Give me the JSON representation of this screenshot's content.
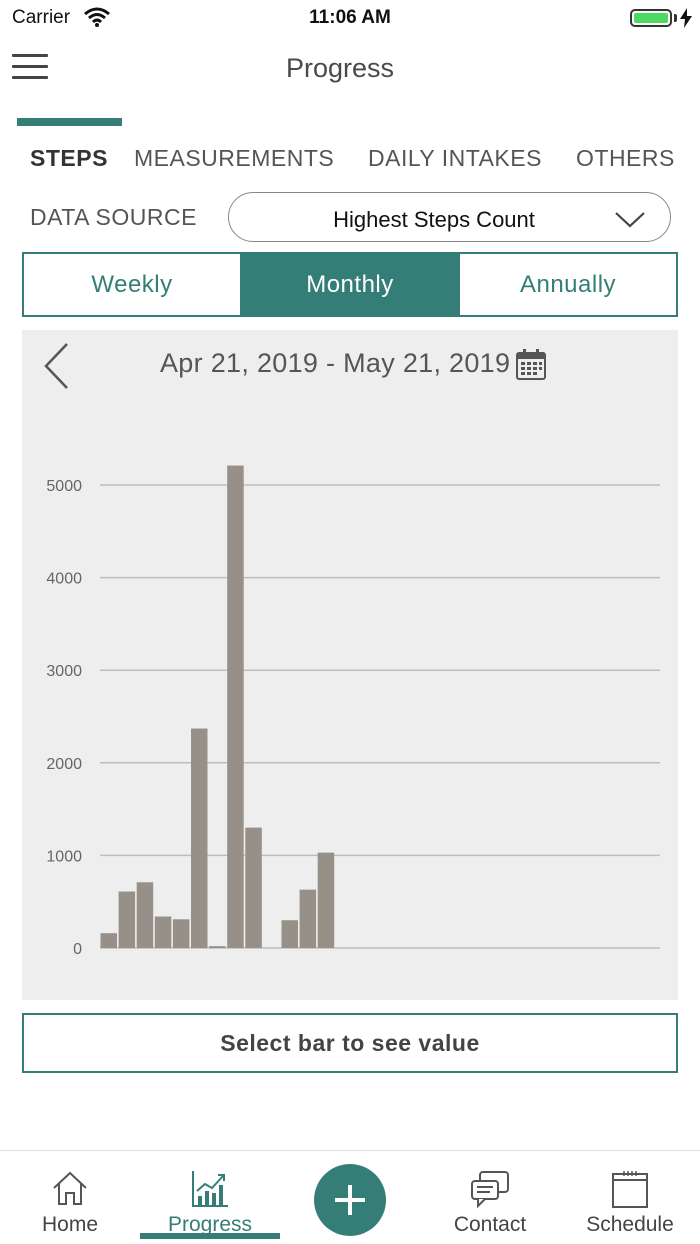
{
  "status_bar": {
    "carrier": "Carrier",
    "time": "11:06 AM"
  },
  "header": {
    "title": "Progress"
  },
  "tabs": [
    {
      "label": "STEPS",
      "active": true
    },
    {
      "label": "MEASUREMENTS",
      "active": false
    },
    {
      "label": "DAILY INTAKES",
      "active": false
    },
    {
      "label": "OTHERS",
      "active": false
    }
  ],
  "data_source": {
    "label": "DATA SOURCE",
    "selected": "Highest Steps Count"
  },
  "period": {
    "options": [
      "Weekly",
      "Monthly",
      "Annually"
    ],
    "selected": "Monthly"
  },
  "chart_header": {
    "date_range": "Apr 21, 2019 - May 21, 2019"
  },
  "chart_data": {
    "type": "bar",
    "values": [
      160,
      610,
      710,
      340,
      310,
      2370,
      20,
      5210,
      1300,
      0,
      300,
      630,
      1030
    ],
    "ylim": [
      0,
      5000
    ],
    "yticks": [
      0,
      1000,
      2000,
      3000,
      4000,
      5000
    ],
    "grid": true,
    "bar_color": "#979089"
  },
  "value_box": {
    "text": "Select bar to see value"
  },
  "bottom_nav": {
    "items": [
      {
        "label": "Home",
        "icon": "home-icon"
      },
      {
        "label": "Progress",
        "icon": "chart-icon"
      },
      {
        "label": "Contact",
        "icon": "chat-icon"
      },
      {
        "label": "Schedule",
        "icon": "calendar-icon"
      }
    ]
  },
  "colors": {
    "accent": "#357e77",
    "chart_background": "#eeeeee"
  }
}
